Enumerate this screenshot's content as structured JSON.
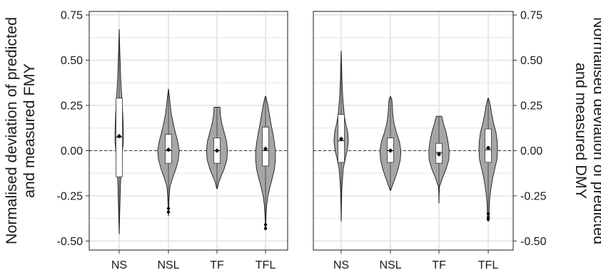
{
  "chart_data": [
    {
      "type": "violin",
      "ylabel_lines": [
        "Normalised deviation of predicted",
        "and measured FMY"
      ],
      "ylabel_side": "left",
      "categories": [
        "NS",
        "NSL",
        "TF",
        "TFL"
      ],
      "yticks": [
        "0.75",
        "0.50",
        "0.25",
        "0.00",
        "-0.25",
        "-0.50"
      ],
      "ylim": [
        -0.55,
        0.77
      ],
      "grid": true,
      "reference_line": 0,
      "violins": [
        {
          "category": "NS",
          "min": -0.46,
          "max": 0.67,
          "profile": [
            [
              -0.46,
              0.002
            ],
            [
              -0.4,
              0.01
            ],
            [
              -0.3,
              0.025
            ],
            [
              -0.2,
              0.04
            ],
            [
              -0.1,
              0.07
            ],
            [
              0.0,
              0.11
            ],
            [
              0.05,
              0.14
            ],
            [
              0.1,
              0.14
            ],
            [
              0.2,
              0.12
            ],
            [
              0.3,
              0.085
            ],
            [
              0.4,
              0.05
            ],
            [
              0.5,
              0.03
            ],
            [
              0.6,
              0.012
            ],
            [
              0.67,
              0.002
            ]
          ],
          "q1": -0.145,
          "median": 0.075,
          "q3": 0.29,
          "mean": 0.08,
          "outliers": []
        },
        {
          "category": "NSL",
          "min": -0.36,
          "max": 0.34,
          "profile": [
            [
              -0.36,
              0.002
            ],
            [
              -0.33,
              0.01
            ],
            [
              -0.3,
              0.015
            ],
            [
              -0.25,
              0.025
            ],
            [
              -0.2,
              0.05
            ],
            [
              -0.15,
              0.14
            ],
            [
              -0.1,
              0.25
            ],
            [
              -0.05,
              0.33
            ],
            [
              0.0,
              0.36
            ],
            [
              0.05,
              0.31
            ],
            [
              0.1,
              0.23
            ],
            [
              0.15,
              0.16
            ],
            [
              0.2,
              0.1
            ],
            [
              0.25,
              0.06
            ],
            [
              0.3,
              0.03
            ],
            [
              0.34,
              0.002
            ]
          ],
          "q1": -0.07,
          "median": 0.0,
          "q3": 0.09,
          "mean": 0.005,
          "outliers": [
            -0.32,
            -0.34
          ]
        },
        {
          "category": "TF",
          "min": -0.21,
          "max": 0.24,
          "profile": [
            [
              -0.21,
              0.01
            ],
            [
              -0.18,
              0.05
            ],
            [
              -0.15,
              0.12
            ],
            [
              -0.1,
              0.24
            ],
            [
              -0.05,
              0.33
            ],
            [
              0.0,
              0.35
            ],
            [
              0.05,
              0.32
            ],
            [
              0.1,
              0.24
            ],
            [
              0.15,
              0.16
            ],
            [
              0.2,
              0.11
            ],
            [
              0.24,
              0.1
            ]
          ],
          "q1": -0.07,
          "median": 0.0,
          "q3": 0.07,
          "mean": 0.0,
          "outliers": []
        },
        {
          "category": "TFL",
          "min": -0.44,
          "max": 0.3,
          "profile": [
            [
              -0.44,
              0.002
            ],
            [
              -0.4,
              0.01
            ],
            [
              -0.35,
              0.02
            ],
            [
              -0.3,
              0.04
            ],
            [
              -0.25,
              0.08
            ],
            [
              -0.2,
              0.15
            ],
            [
              -0.15,
              0.23
            ],
            [
              -0.1,
              0.3
            ],
            [
              -0.05,
              0.33
            ],
            [
              0.0,
              0.33
            ],
            [
              0.05,
              0.29
            ],
            [
              0.1,
              0.24
            ],
            [
              0.15,
              0.18
            ],
            [
              0.2,
              0.13
            ],
            [
              0.25,
              0.08
            ],
            [
              0.3,
              0.01
            ]
          ],
          "q1": -0.085,
          "median": 0.0,
          "q3": 0.13,
          "mean": 0.01,
          "outliers": [
            -0.41,
            -0.43
          ]
        }
      ]
    },
    {
      "type": "violin",
      "ylabel_lines": [
        "Normalised deviation of predicted",
        "and measured DMY"
      ],
      "ylabel_side": "right",
      "categories": [
        "NS",
        "NSL",
        "TF",
        "TFL"
      ],
      "yticks": [
        "0.75",
        "0.50",
        "0.25",
        "0.00",
        "-0.25",
        "-0.50"
      ],
      "ylim": [
        -0.55,
        0.77
      ],
      "grid": true,
      "reference_line": 0,
      "violins": [
        {
          "category": "NS",
          "min": -0.39,
          "max": 0.55,
          "profile": [
            [
              -0.39,
              0.002
            ],
            [
              -0.3,
              0.01
            ],
            [
              -0.2,
              0.025
            ],
            [
              -0.1,
              0.07
            ],
            [
              -0.05,
              0.13
            ],
            [
              0.0,
              0.2
            ],
            [
              0.05,
              0.24
            ],
            [
              0.1,
              0.22
            ],
            [
              0.15,
              0.15
            ],
            [
              0.2,
              0.1
            ],
            [
              0.3,
              0.05
            ],
            [
              0.4,
              0.025
            ],
            [
              0.5,
              0.01
            ],
            [
              0.55,
              0.002
            ]
          ],
          "q1": -0.065,
          "median": 0.055,
          "q3": 0.2,
          "mean": 0.065,
          "outliers": []
        },
        {
          "category": "NSL",
          "min": -0.22,
          "max": 0.3,
          "profile": [
            [
              -0.22,
              0.01
            ],
            [
              -0.2,
              0.05
            ],
            [
              -0.15,
              0.16
            ],
            [
              -0.1,
              0.26
            ],
            [
              -0.05,
              0.33
            ],
            [
              0.0,
              0.35
            ],
            [
              0.05,
              0.3
            ],
            [
              0.1,
              0.2
            ],
            [
              0.15,
              0.12
            ],
            [
              0.2,
              0.08
            ],
            [
              0.25,
              0.06
            ],
            [
              0.28,
              0.05
            ],
            [
              0.3,
              0.005
            ]
          ],
          "q1": -0.065,
          "median": 0.0,
          "q3": 0.07,
          "mean": 0.0,
          "outliers": []
        },
        {
          "category": "TF",
          "min": -0.29,
          "max": 0.19,
          "profile": [
            [
              -0.29,
              0.002
            ],
            [
              -0.25,
              0.005
            ],
            [
              -0.2,
              0.015
            ],
            [
              -0.15,
              0.12
            ],
            [
              -0.1,
              0.24
            ],
            [
              -0.05,
              0.33
            ],
            [
              0.0,
              0.34
            ],
            [
              0.05,
              0.3
            ],
            [
              0.1,
              0.24
            ],
            [
              0.15,
              0.15
            ],
            [
              0.19,
              0.09
            ]
          ],
          "q1": -0.07,
          "median": -0.01,
          "q3": 0.04,
          "mean": -0.02,
          "outliers": []
        },
        {
          "category": "TFL",
          "min": -0.39,
          "max": 0.29,
          "profile": [
            [
              -0.39,
              0.01
            ],
            [
              -0.35,
              0.03
            ],
            [
              -0.3,
              0.035
            ],
            [
              -0.25,
              0.06
            ],
            [
              -0.2,
              0.1
            ],
            [
              -0.15,
              0.15
            ],
            [
              -0.1,
              0.22
            ],
            [
              -0.05,
              0.29
            ],
            [
              0.0,
              0.31
            ],
            [
              0.05,
              0.3
            ],
            [
              0.1,
              0.26
            ],
            [
              0.15,
              0.18
            ],
            [
              0.2,
              0.12
            ],
            [
              0.25,
              0.07
            ],
            [
              0.29,
              0.01
            ]
          ],
          "q1": -0.065,
          "median": 0.005,
          "q3": 0.12,
          "mean": 0.015,
          "outliers": [
            -0.35,
            -0.37,
            -0.38
          ]
        }
      ]
    }
  ],
  "style": {
    "violin_fill": "#a6a6a6",
    "violin_stroke": "#1a1a1a",
    "box_fill": "#ffffff",
    "grid_color": "#e3e3e3",
    "panel_border": "#1a1a1a",
    "zero_line": "#333333"
  }
}
